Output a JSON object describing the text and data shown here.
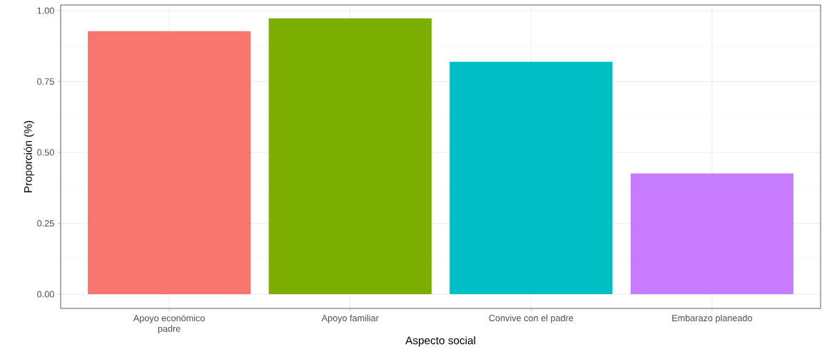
{
  "chart_data": {
    "type": "bar",
    "xlabel": "Aspecto social",
    "ylabel": "Proporción (%)",
    "categories": [
      "Apoyo económico padre",
      "Apoyo familiar",
      "Convive con el padre",
      "Embarazo planeado"
    ],
    "values": [
      0.928,
      0.973,
      0.82,
      0.426
    ],
    "colors": [
      "#f8766d",
      "#7cae00",
      "#00bfc4",
      "#c77cff"
    ],
    "ylim": [
      -0.05,
      1.02
    ],
    "yticks": [
      {
        "value": 0,
        "label": "0.00"
      },
      {
        "value": 0.25,
        "label": "0.25"
      },
      {
        "value": 0.5,
        "label": "0.50"
      },
      {
        "value": 0.75,
        "label": "0.75"
      },
      {
        "value": 1,
        "label": "1.00"
      }
    ],
    "grid": true
  }
}
